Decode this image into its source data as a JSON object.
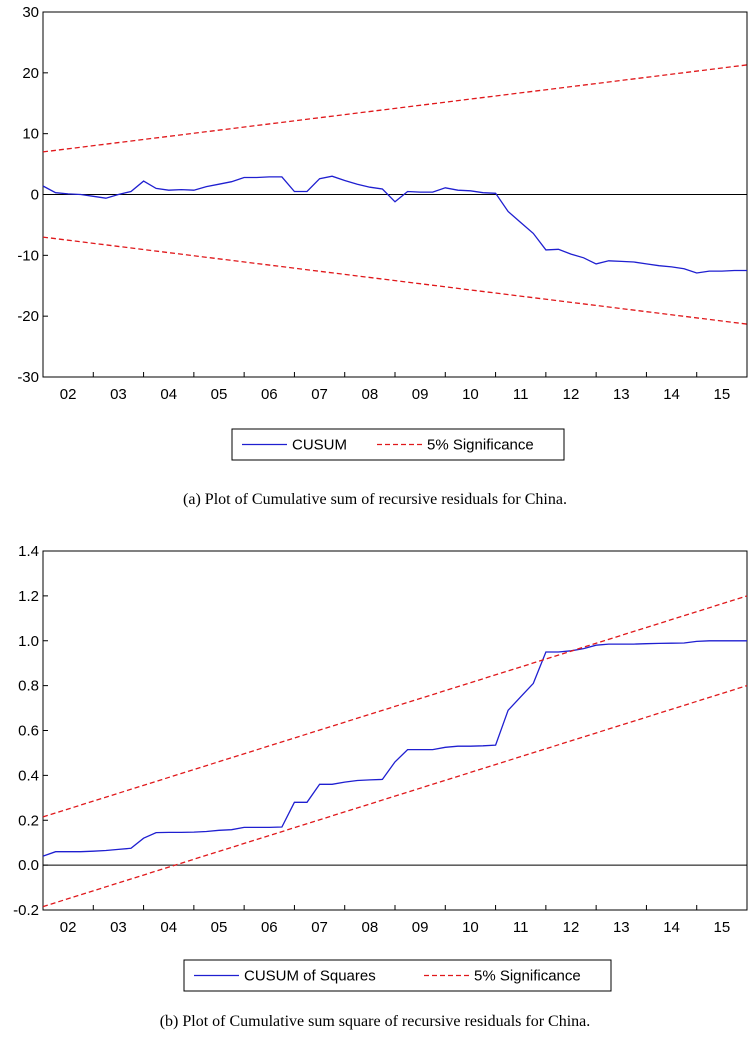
{
  "chart_data": [
    {
      "type": "line",
      "id": "a",
      "caption": "(a) Plot of Cumulative sum of recursive residuals for China.",
      "ylim": [
        -30,
        30
      ],
      "yticks": [
        30,
        20,
        10,
        0,
        -10,
        -20,
        -30
      ],
      "xlim": [
        2001.5,
        2015.5
      ],
      "xticks": [
        "02",
        "03",
        "04",
        "05",
        "06",
        "07",
        "08",
        "09",
        "10",
        "11",
        "12",
        "13",
        "14",
        "15"
      ],
      "zero_line": true,
      "legend": [
        "CUSUM",
        "5% Significance"
      ],
      "colors": {
        "series": "#1f1fd0",
        "bounds": "#e0181b"
      },
      "series": [
        {
          "name": "CUSUM",
          "x": [
            2001.5,
            2001.75,
            2002,
            2002.25,
            2002.5,
            2002.75,
            2003,
            2003.25,
            2003.5,
            2003.75,
            2004,
            2004.25,
            2004.5,
            2004.75,
            2005,
            2005.25,
            2005.5,
            2005.75,
            2006,
            2006.25,
            2006.5,
            2006.75,
            2007,
            2007.25,
            2007.5,
            2007.75,
            2008,
            2008.25,
            2008.5,
            2008.75,
            2009,
            2009.25,
            2009.5,
            2009.75,
            2010,
            2010.25,
            2010.5,
            2010.75,
            2011,
            2011.25,
            2011.5,
            2011.75,
            2012,
            2012.25,
            2012.5,
            2012.75,
            2013,
            2013.25,
            2013.5,
            2013.75,
            2014,
            2014.25,
            2014.5,
            2014.75,
            2015,
            2015.25,
            2015.5
          ],
          "values": [
            1.4,
            0.3,
            0.1,
            0.0,
            -0.3,
            -0.6,
            0.0,
            0.5,
            2.2,
            1.0,
            0.7,
            0.8,
            0.7,
            1.3,
            1.7,
            2.1,
            2.8,
            2.8,
            2.9,
            2.9,
            0.5,
            0.5,
            2.6,
            3.0,
            2.3,
            1.7,
            1.2,
            0.9,
            -1.2,
            0.5,
            0.4,
            0.4,
            1.1,
            0.7,
            0.6,
            0.3,
            0.2,
            -2.8,
            -4.6,
            -6.4,
            -9.1,
            -9.0,
            -9.8,
            -10.4,
            -11.4,
            -10.9,
            -11.0,
            -11.1,
            -11.4,
            -11.7,
            -11.9,
            -12.2,
            -12.9,
            -12.6,
            -12.6,
            -12.5,
            -12.5
          ]
        },
        {
          "name": "5% Significance (upper)",
          "x": [
            2001.5,
            2015.5
          ],
          "values": [
            7.0,
            21.3
          ]
        },
        {
          "name": "5% Significance (lower)",
          "x": [
            2001.5,
            2015.5
          ],
          "values": [
            -7.0,
            -21.3
          ]
        }
      ]
    },
    {
      "type": "line",
      "id": "b",
      "caption": "(b) Plot of Cumulative sum square of recursive residuals for China.",
      "ylim": [
        -0.2,
        1.4
      ],
      "yticks": [
        "1.4",
        "1.2",
        "1.0",
        "0.8",
        "0.6",
        "0.4",
        "0.2",
        "0.0",
        "-0.2"
      ],
      "xlim": [
        2001.5,
        2015.5
      ],
      "xticks": [
        "02",
        "03",
        "04",
        "05",
        "06",
        "07",
        "08",
        "09",
        "10",
        "11",
        "12",
        "13",
        "14",
        "15"
      ],
      "zero_line": true,
      "legend": [
        "CUSUM of Squares",
        "5% Significance"
      ],
      "colors": {
        "series": "#1f1fd0",
        "bounds": "#e0181b"
      },
      "series": [
        {
          "name": "CUSUM of Squares",
          "x": [
            2001.5,
            2001.75,
            2002,
            2002.25,
            2002.5,
            2002.75,
            2003,
            2003.25,
            2003.5,
            2003.75,
            2004,
            2004.25,
            2004.5,
            2004.75,
            2005,
            2005.25,
            2005.5,
            2005.75,
            2006,
            2006.25,
            2006.5,
            2006.75,
            2007,
            2007.25,
            2007.5,
            2007.75,
            2008,
            2008.25,
            2008.5,
            2008.75,
            2009,
            2009.25,
            2009.5,
            2009.75,
            2010,
            2010.25,
            2010.5,
            2010.75,
            2011,
            2011.25,
            2011.5,
            2011.75,
            2012,
            2012.25,
            2012.5,
            2012.75,
            2013,
            2013.25,
            2013.5,
            2013.75,
            2014,
            2014.25,
            2014.5,
            2014.75,
            2015,
            2015.25,
            2015.5
          ],
          "values": [
            0.04,
            0.06,
            0.06,
            0.06,
            0.062,
            0.065,
            0.07,
            0.075,
            0.12,
            0.145,
            0.146,
            0.146,
            0.147,
            0.15,
            0.155,
            0.158,
            0.168,
            0.168,
            0.168,
            0.17,
            0.28,
            0.28,
            0.36,
            0.36,
            0.37,
            0.377,
            0.38,
            0.382,
            0.46,
            0.515,
            0.515,
            0.515,
            0.525,
            0.53,
            0.53,
            0.532,
            0.535,
            0.69,
            0.75,
            0.81,
            0.95,
            0.95,
            0.955,
            0.965,
            0.98,
            0.985,
            0.985,
            0.985,
            0.987,
            0.988,
            0.989,
            0.99,
            0.997,
            1.0,
            1.0,
            1.0,
            1.0
          ]
        },
        {
          "name": "5% Significance (upper)",
          "x": [
            2001.5,
            2015.5
          ],
          "values": [
            0.215,
            1.2
          ]
        },
        {
          "name": "5% Significance (lower)",
          "x": [
            2001.5,
            2015.5
          ],
          "values": [
            -0.185,
            0.8
          ]
        }
      ]
    }
  ]
}
